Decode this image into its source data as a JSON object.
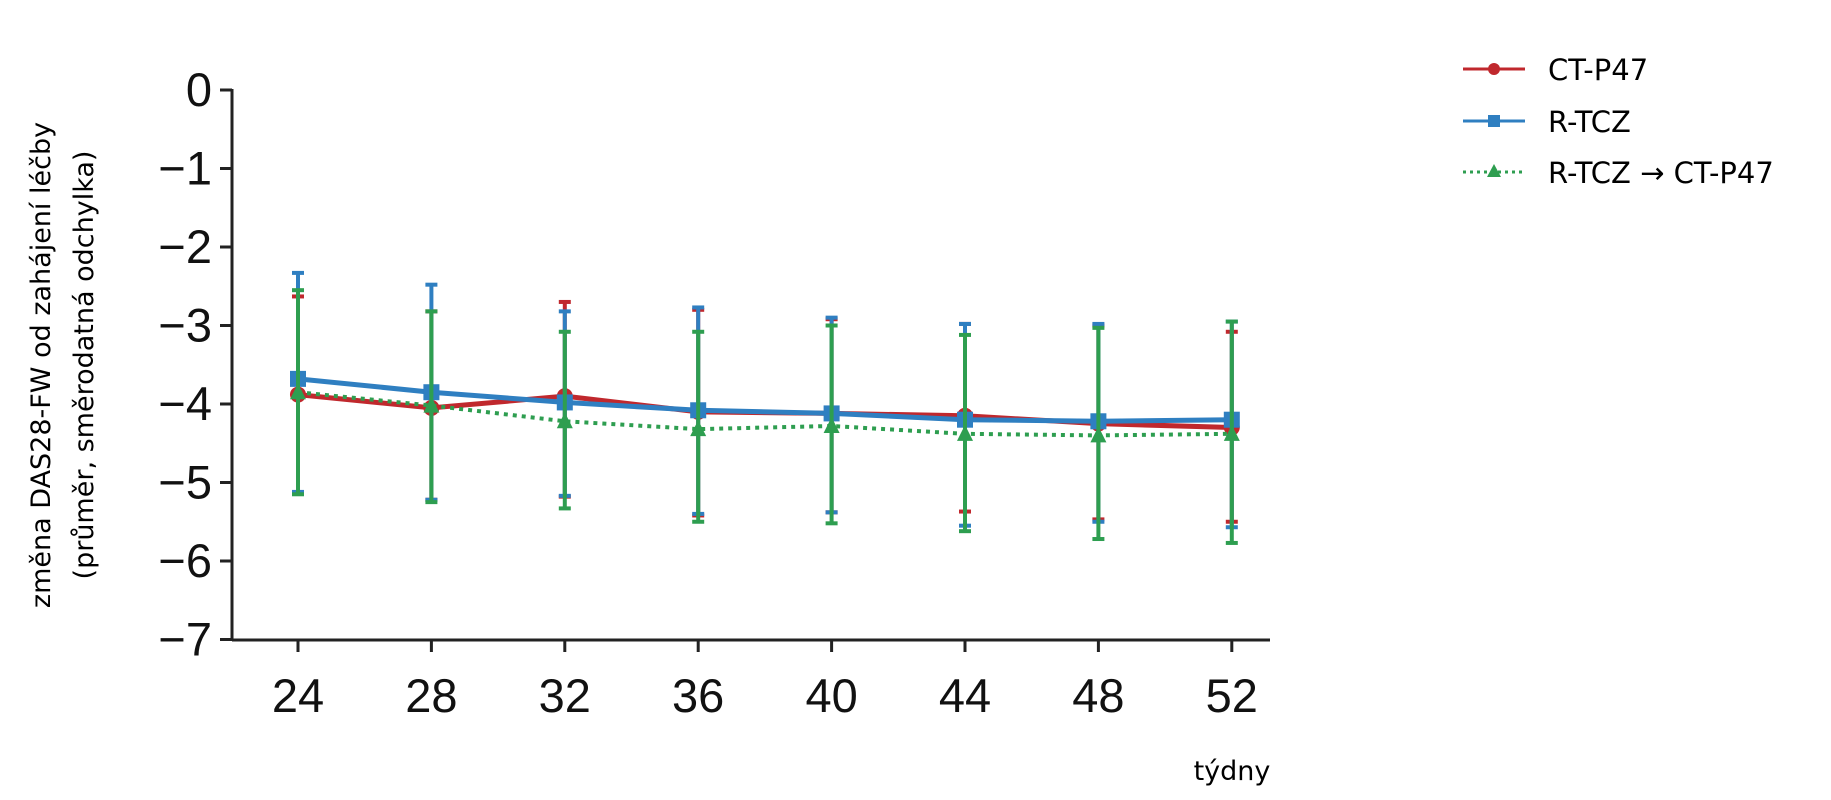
{
  "chart_data": {
    "type": "line",
    "xlabel": "týdny",
    "ylabel_lines": [
      "změna DAS28-FW od zahájení léčby",
      "(průměr, směrodatná odchylka)"
    ],
    "x": [
      24,
      28,
      32,
      36,
      40,
      44,
      48,
      52
    ],
    "x_ticks": [
      "24",
      "28",
      "32",
      "36",
      "40",
      "44",
      "48",
      "52"
    ],
    "ylim": [
      -7,
      0
    ],
    "y_ticks": [
      "0",
      "−1",
      "−2",
      "−3",
      "−4",
      "−5",
      "−6",
      "−7"
    ],
    "y_tick_values": [
      0,
      -1,
      -2,
      -3,
      -4,
      -5,
      -6,
      -7
    ],
    "grid": false,
    "legend_position": "top-right",
    "series": [
      {
        "name": "CT-P47",
        "color": "#c0282d",
        "marker": "circle",
        "line_style": "solid",
        "values": [
          -3.88,
          -4.05,
          -3.9,
          -4.1,
          -4.12,
          -4.15,
          -4.25,
          -4.3
        ],
        "err_low": [
          -5.13,
          -5.22,
          -5.18,
          -5.42,
          -5.38,
          -5.37,
          -5.47,
          -5.5
        ],
        "err_high": [
          -2.63,
          -2.82,
          -2.7,
          -2.8,
          -2.92,
          -2.98,
          -3.0,
          -3.08
        ]
      },
      {
        "name": "R-TCZ",
        "color": "#2f7fc1",
        "marker": "square",
        "line_style": "solid",
        "values": [
          -3.68,
          -3.85,
          -3.98,
          -4.08,
          -4.12,
          -4.2,
          -4.22,
          -4.2
        ],
        "err_low": [
          -5.12,
          -5.22,
          -5.17,
          -5.4,
          -5.38,
          -5.55,
          -5.5,
          -5.57
        ],
        "err_high": [
          -2.33,
          -2.48,
          -2.82,
          -2.77,
          -2.9,
          -2.98,
          -2.98,
          -2.95
        ]
      },
      {
        "name": "R-TCZ → CT-P47",
        "color": "#2e9e50",
        "marker": "triangle",
        "line_style": "dotted",
        "values": [
          -3.85,
          -4.02,
          -4.22,
          -4.32,
          -4.28,
          -4.38,
          -4.4,
          -4.38
        ],
        "err_low": [
          -5.15,
          -5.25,
          -5.33,
          -5.5,
          -5.52,
          -5.62,
          -5.72,
          -5.77
        ],
        "err_high": [
          -2.55,
          -2.82,
          -3.08,
          -3.08,
          -3.0,
          -3.12,
          -3.03,
          -2.95
        ]
      }
    ]
  }
}
